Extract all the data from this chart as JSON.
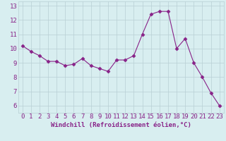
{
  "x": [
    0,
    1,
    2,
    3,
    4,
    5,
    6,
    7,
    8,
    9,
    10,
    11,
    12,
    13,
    14,
    15,
    16,
    17,
    18,
    19,
    20,
    21,
    22,
    23
  ],
  "y": [
    10.2,
    9.8,
    9.5,
    9.1,
    9.1,
    8.8,
    8.9,
    9.3,
    8.8,
    8.6,
    8.4,
    9.2,
    9.2,
    9.5,
    11.0,
    12.4,
    12.6,
    12.6,
    10.0,
    10.7,
    9.0,
    8.0,
    6.9,
    6.0
  ],
  "xlabel": "Windchill (Refroidissement éolien,°C)",
  "ylim": [
    5.5,
    13.3
  ],
  "xlim": [
    -0.5,
    23.5
  ],
  "yticks": [
    6,
    7,
    8,
    9,
    10,
    11,
    12,
    13
  ],
  "xticks": [
    0,
    1,
    2,
    3,
    4,
    5,
    6,
    7,
    8,
    9,
    10,
    11,
    12,
    13,
    14,
    15,
    16,
    17,
    18,
    19,
    20,
    21,
    22,
    23
  ],
  "line_color": "#882288",
  "marker": "D",
  "marker_size": 2.5,
  "bg_color": "#d8eef0",
  "grid_color": "#b8cfd4",
  "xlabel_color": "#882288",
  "tick_label_color": "#882288",
  "axis_label_fontsize": 6.5,
  "tick_fontsize": 6.5
}
